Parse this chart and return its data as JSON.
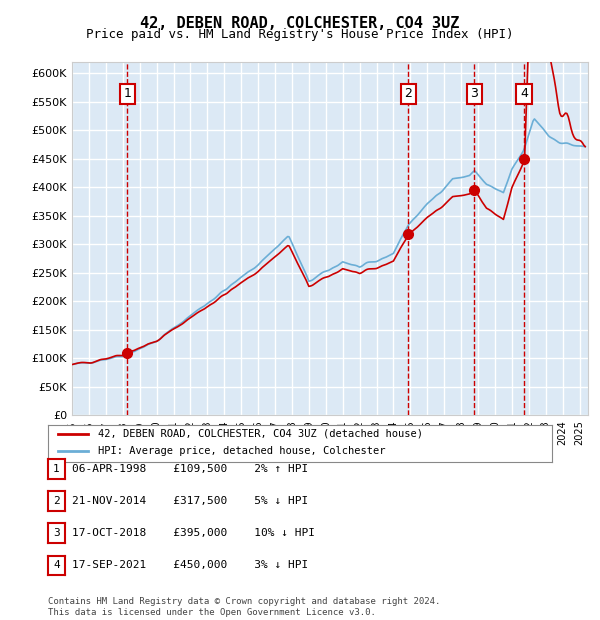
{
  "title": "42, DEBEN ROAD, COLCHESTER, CO4 3UZ",
  "subtitle": "Price paid vs. HM Land Registry's House Price Index (HPI)",
  "xlabel": "",
  "ylabel": "",
  "ylim": [
    0,
    620000
  ],
  "yticks": [
    0,
    50000,
    100000,
    150000,
    200000,
    250000,
    300000,
    350000,
    400000,
    450000,
    500000,
    550000,
    600000
  ],
  "ytick_labels": [
    "£0",
    "£50K",
    "£100K",
    "£150K",
    "£200K",
    "£250K",
    "£300K",
    "£350K",
    "£400K",
    "£450K",
    "£500K",
    "£550K",
    "£600K"
  ],
  "background_color": "#dce9f5",
  "grid_color": "#ffffff",
  "hpi_color": "#6baed6",
  "price_color": "#cc0000",
  "sale_dot_color": "#cc0000",
  "vline_color": "#cc0000",
  "marker_box_color": "#cc0000",
  "sales": [
    {
      "label": "1",
      "date": 1998.27,
      "price": 109500,
      "x_year": 1998.27
    },
    {
      "label": "2",
      "date": 2014.89,
      "price": 317500,
      "x_year": 2014.89
    },
    {
      "label": "3",
      "date": 2018.79,
      "price": 395000,
      "x_year": 2018.79
    },
    {
      "label": "4",
      "date": 2021.71,
      "price": 450000,
      "x_year": 2021.71
    }
  ],
  "legend_entries": [
    "42, DEBEN ROAD, COLCHESTER, CO4 3UZ (detached house)",
    "HPI: Average price, detached house, Colchester"
  ],
  "table_rows": [
    [
      "1",
      "06-APR-1998",
      "£109,500",
      "2% ↑ HPI"
    ],
    [
      "2",
      "21-NOV-2014",
      "£317,500",
      "5% ↓ HPI"
    ],
    [
      "3",
      "17-OCT-2018",
      "£395,000",
      "10% ↓ HPI"
    ],
    [
      "4",
      "17-SEP-2021",
      "£450,000",
      "3% ↓ HPI"
    ]
  ],
  "footer": "Contains HM Land Registry data © Crown copyright and database right 2024.\nThis data is licensed under the Open Government Licence v3.0.",
  "xmin": 1995.0,
  "xmax": 2025.5
}
